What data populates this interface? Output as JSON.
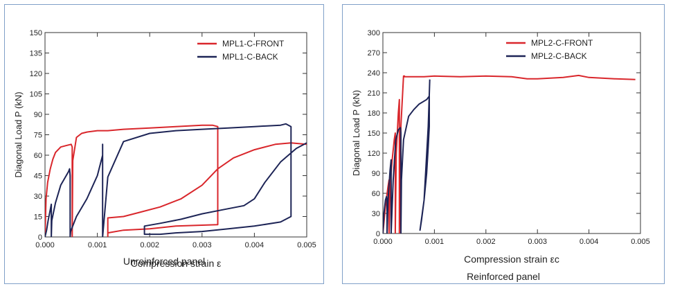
{
  "colors": {
    "front": "#d9262b",
    "back": "#1d2456",
    "frame": "#7f9fc8"
  },
  "chart_data": [
    {
      "type": "line",
      "xlabel": "Compression strain ε",
      "subtitle": "Unreinforced panel",
      "ylabel": "Diagonal Load P (kN)",
      "xlim": [
        0,
        0.005
      ],
      "ylim": [
        0,
        150
      ],
      "xticks": [
        0,
        0.001,
        0.002,
        0.003,
        0.004,
        0.005
      ],
      "xtick_labels": [
        "0.000",
        "0.001",
        "0.002",
        "0.003",
        "0.004",
        "0.005"
      ],
      "yticks": [
        0,
        15,
        30,
        45,
        60,
        75,
        90,
        105,
        120,
        135,
        150
      ],
      "ytick_labels": [
        "0",
        "15",
        "30",
        "45",
        "60",
        "75",
        "90",
        "105",
        "120",
        "135",
        "150"
      ],
      "legend_position": "top-right",
      "series": [
        {
          "name": "MPL1-C-FRONT",
          "color_key": "front",
          "x": [
            0.0,
            2e-05,
            5e-05,
            0.0001,
            0.00015,
            0.0002,
            0.0003,
            0.0004,
            0.0005,
            0.00052,
            0.00052,
            0.00053,
            0.0006,
            0.0007,
            0.0008,
            0.001,
            0.0012,
            0.0015,
            0.002,
            0.0025,
            0.003,
            0.0032,
            0.0033,
            0.0033,
            0.0033,
            0.0025,
            0.002,
            0.0015,
            0.0012,
            0.0012,
            0.0012,
            0.0015,
            0.0018,
            0.0022,
            0.0026,
            0.003,
            0.0033,
            0.0036,
            0.004,
            0.0044,
            0.0047,
            0.005
          ],
          "y": [
            0,
            28,
            40,
            50,
            57,
            62,
            66,
            67,
            68,
            66,
            0,
            56,
            73,
            76,
            77,
            78,
            78,
            79,
            80,
            81,
            82,
            82,
            81,
            10,
            9,
            8,
            6,
            5,
            3,
            0,
            14,
            15,
            18,
            22,
            28,
            38,
            50,
            58,
            64,
            68,
            69,
            68
          ]
        },
        {
          "name": "MPL1-C-BACK",
          "color_key": "back",
          "x": [
            0.0,
            3e-05,
            6e-05,
            0.0001,
            0.00012,
            0.00012,
            0.00013,
            0.0002,
            0.0003,
            0.00045,
            0.00047,
            0.00048,
            0.00048,
            0.00049,
            0.0006,
            0.0008,
            0.001,
            0.0011,
            0.0011,
            0.0011,
            0.0012,
            0.0015,
            0.002,
            0.0025,
            0.003,
            0.0035,
            0.004,
            0.0045,
            0.0046,
            0.0047,
            0.0047,
            0.0047,
            0.0045,
            0.004,
            0.0035,
            0.003,
            0.0025,
            0.0022,
            0.0019,
            0.0019,
            0.0022,
            0.0026,
            0.003,
            0.0034,
            0.0038,
            0.004,
            0.0042,
            0.0045,
            0.0048,
            0.005
          ],
          "y": [
            0,
            5,
            12,
            20,
            24,
            0,
            12,
            25,
            38,
            48,
            50,
            45,
            0,
            4,
            15,
            28,
            45,
            60,
            68,
            0,
            44,
            70,
            76,
            78,
            79,
            80,
            81,
            82,
            83,
            81,
            30,
            15,
            11,
            8,
            6,
            4,
            3,
            2,
            2,
            8,
            10,
            13,
            17,
            20,
            23,
            28,
            40,
            55,
            65,
            69
          ]
        }
      ]
    },
    {
      "type": "line",
      "xlabel": "Compression strain εc",
      "subtitle": "Reinforced panel",
      "ylabel": "Diagonal Load P (kN)",
      "xlim": [
        0,
        0.005
      ],
      "ylim": [
        0,
        300
      ],
      "xticks": [
        0,
        0.001,
        0.002,
        0.003,
        0.004,
        0.005
      ],
      "xtick_labels": [
        "0.000",
        "0.001",
        "0.002",
        "0.003",
        "0.004",
        "0.005"
      ],
      "yticks": [
        0,
        30,
        60,
        90,
        120,
        150,
        180,
        210,
        240,
        270,
        300
      ],
      "ytick_labels": [
        "0",
        "30",
        "60",
        "90",
        "120",
        "150",
        "180",
        "210",
        "240",
        "270",
        "300"
      ],
      "legend_position": "top-right",
      "series": [
        {
          "name": "MPL2-C-FRONT",
          "color_key": "front",
          "x": [
            0.0,
            5e-05,
            0.0001,
            0.00012,
            0.00012,
            0.00014,
            0.00018,
            0.00022,
            0.00024,
            0.00024,
            0.00026,
            0.0003,
            0.00032,
            0.00032,
            0.00035,
            0.0004,
            0.00042,
            0.00042,
            0.0005,
            0.0008,
            0.001,
            0.0015,
            0.002,
            0.0025,
            0.0028,
            0.003,
            0.0035,
            0.0038,
            0.004,
            0.0045,
            0.0049
          ],
          "y": [
            0,
            40,
            70,
            80,
            0,
            70,
            110,
            140,
            150,
            0,
            120,
            180,
            200,
            0,
            160,
            235,
            235,
            234,
            234,
            234,
            235,
            234,
            235,
            234,
            231,
            231,
            233,
            236,
            233,
            231,
            230
          ]
        },
        {
          "name": "MPL2-C-BACK",
          "color_key": "back",
          "x": [
            0.0,
            2e-05,
            5e-05,
            7e-05,
            8e-05,
            8e-05,
            0.0001,
            0.00014,
            0.00016,
            0.00016,
            0.0002,
            0.00025,
            0.0003,
            0.00034,
            0.00035,
            0.00035,
            0.00036,
            0.0004,
            0.0005,
            0.0006,
            0.0007,
            0.00085,
            0.0009,
            0.0009,
            0.00088,
            0.00085,
            0.0008,
            0.00075,
            0.00072,
            0.0008,
            0.00088,
            0.00091
          ],
          "y": [
            0,
            30,
            50,
            55,
            50,
            0,
            50,
            95,
            110,
            0,
            80,
            140,
            155,
            158,
            150,
            0,
            80,
            140,
            175,
            185,
            193,
            200,
            205,
            160,
            130,
            90,
            50,
            20,
            5,
            50,
            160,
            230
          ]
        }
      ]
    }
  ]
}
